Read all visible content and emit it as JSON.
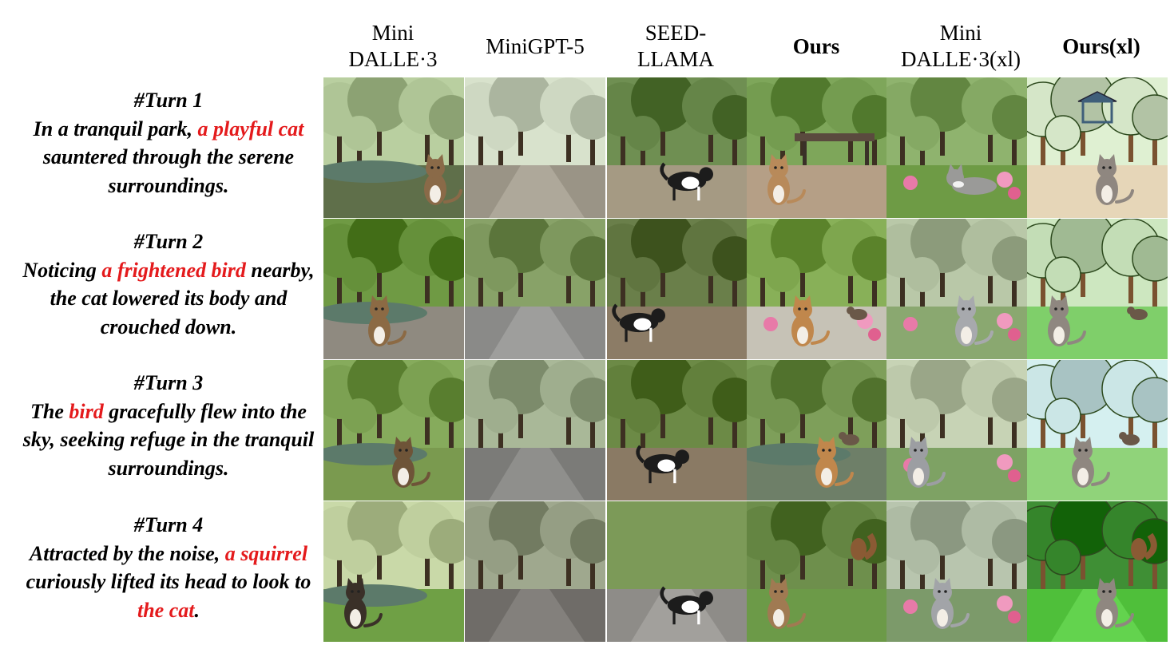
{
  "columns": [
    {
      "label": "Mini\nDALLE·3",
      "bold": false
    },
    {
      "label": "MiniGPT-5",
      "bold": false
    },
    {
      "label": "SEED-\nLLAMA",
      "bold": false
    },
    {
      "label": "Ours",
      "bold": true
    },
    {
      "label": "Mini\nDALLE·3(xl)",
      "bold": false
    },
    {
      "label": "Ours(xl)",
      "bold": true
    }
  ],
  "turns": [
    {
      "title": "#Turn 1",
      "segments": [
        {
          "text": "In a tranquil park, ",
          "highlight": false
        },
        {
          "text": "a playful cat",
          "highlight": true
        },
        {
          "text": " sauntered through the serene surroundings.",
          "highlight": false
        }
      ]
    },
    {
      "title": "#Turn 2",
      "segments": [
        {
          "text": "Noticing ",
          "highlight": false
        },
        {
          "text": "a frightened bird",
          "highlight": true
        },
        {
          "text": " nearby, the cat lowered its body and crouched down.",
          "highlight": false
        }
      ]
    },
    {
      "title": "#Turn 3",
      "segments": [
        {
          "text": "The ",
          "highlight": false
        },
        {
          "text": "bird",
          "highlight": true
        },
        {
          "text": " gracefully flew into the sky, seeking refuge in the tranquil surroundings.",
          "highlight": false
        }
      ]
    },
    {
      "title": "#Turn 4",
      "segments": [
        {
          "text": "Attracted by the noise, ",
          "highlight": false
        },
        {
          "text": "a squirrel",
          "highlight": true
        },
        {
          "text": " curiously lifted its head to look to ",
          "highlight": false
        },
        {
          "text": "the cat",
          "highlight": true
        },
        {
          "text": ".",
          "highlight": false
        }
      ]
    }
  ],
  "colors": {
    "highlight": "#e41a1c",
    "text": "#000000"
  },
  "cells": [
    [
      {
        "scene": "pond",
        "sky": "#b9cfa0",
        "ground": "#5f6f4a",
        "subject": "cat-standing",
        "subject_color": "#8a6a48"
      },
      {
        "scene": "path",
        "sky": "#d8e2cc",
        "ground": "#9a9486",
        "subject": "none",
        "subject_color": "#000000"
      },
      {
        "scene": "lawn",
        "sky": "#6f8f52",
        "ground": "#a59a83",
        "subject": "dog",
        "subject_color": "#1c1c1c"
      },
      {
        "scene": "bench",
        "sky": "#7ea65a",
        "ground": "#b59f86",
        "subject": "cat-sitting",
        "subject_color": "#b88a5a"
      },
      {
        "scene": "garden",
        "sky": "#8fb36e",
        "ground": "#6e9b45",
        "subject": "cat-lying",
        "subject_color": "#9a9a98"
      },
      {
        "scene": "cartoon-pavilion",
        "sky": "#dff0d2",
        "ground": "#e6d6b8",
        "subject": "cat-sitting",
        "subject_color": "#8f8780"
      }
    ],
    [
      {
        "scene": "park",
        "sky": "#6f9a44",
        "ground": "#8f8a80",
        "subject": "cat-sitting",
        "subject_color": "#8c6a44"
      },
      {
        "scene": "path",
        "sky": "#88a268",
        "ground": "#8a8a88",
        "subject": "none",
        "subject_color": "#000000"
      },
      {
        "scene": "forest",
        "sky": "#6a7f4a",
        "ground": "#8c7c66",
        "subject": "dog",
        "subject_color": "#1c1c1c"
      },
      {
        "scene": "fountain",
        "sky": "#88b058",
        "ground": "#c6c2b6",
        "subject": "cat-sitting",
        "subject_color": "#c0874c"
      },
      {
        "scene": "garden-fountain",
        "sky": "#b9c8a8",
        "ground": "#8aa870",
        "subject": "cat-sitting",
        "subject_color": "#a7a9ad"
      },
      {
        "scene": "cartoon-park",
        "sky": "#cde7c0",
        "ground": "#7fcf6a",
        "subject": "cat-sitting",
        "subject_color": "#8f8780"
      }
    ],
    [
      {
        "scene": "park",
        "sky": "#86ab5c",
        "ground": "#7a9a4f",
        "subject": "cat-sitting",
        "subject_color": "#6e5438"
      },
      {
        "scene": "forest-path",
        "sky": "#a9b898",
        "ground": "#7b7b78",
        "subject": "none",
        "subject_color": "#000000"
      },
      {
        "scene": "lawn",
        "sky": "#6c8a46",
        "ground": "#8a7a64",
        "subject": "dog",
        "subject_color": "#1c1c1c"
      },
      {
        "scene": "pond",
        "sky": "#7e9f5a",
        "ground": "#6e7f68",
        "subject": "cat-sitting",
        "subject_color": "#c0874c"
      },
      {
        "scene": "garden-fountain",
        "sky": "#c7d3b5",
        "ground": "#7ea264",
        "subject": "cat-sitting",
        "subject_color": "#9c9ea2"
      },
      {
        "scene": "cartoon-park",
        "sky": "#d5f0f0",
        "ground": "#90d37a",
        "subject": "cat-sitting",
        "subject_color": "#8f8780"
      }
    ],
    [
      {
        "scene": "park",
        "sky": "#c9d9a8",
        "ground": "#6fa045",
        "subject": "cat-sitting",
        "subject_color": "#3a3028"
      },
      {
        "scene": "forest-path",
        "sky": "#9fa88e",
        "ground": "#6f6c68",
        "subject": "none",
        "subject_color": "#000000"
      },
      {
        "scene": "road",
        "sky": "#7c9a58",
        "ground": "#8e8c88",
        "subject": "dog",
        "subject_color": "#1c1c1c"
      },
      {
        "scene": "moss",
        "sky": "#6e8f4c",
        "ground": "#6c9a48",
        "subject": "cat-sitting",
        "subject_color": "#a07a52"
      },
      {
        "scene": "garden-fountain",
        "sky": "#b8c5ae",
        "ground": "#7c9a6a",
        "subject": "cat-sitting",
        "subject_color": "#a2a4a8"
      },
      {
        "scene": "cartoon-path",
        "sky": "#3f8f35",
        "ground": "#4fbf3a",
        "subject": "cat-sitting",
        "subject_color": "#8f8780"
      }
    ]
  ]
}
